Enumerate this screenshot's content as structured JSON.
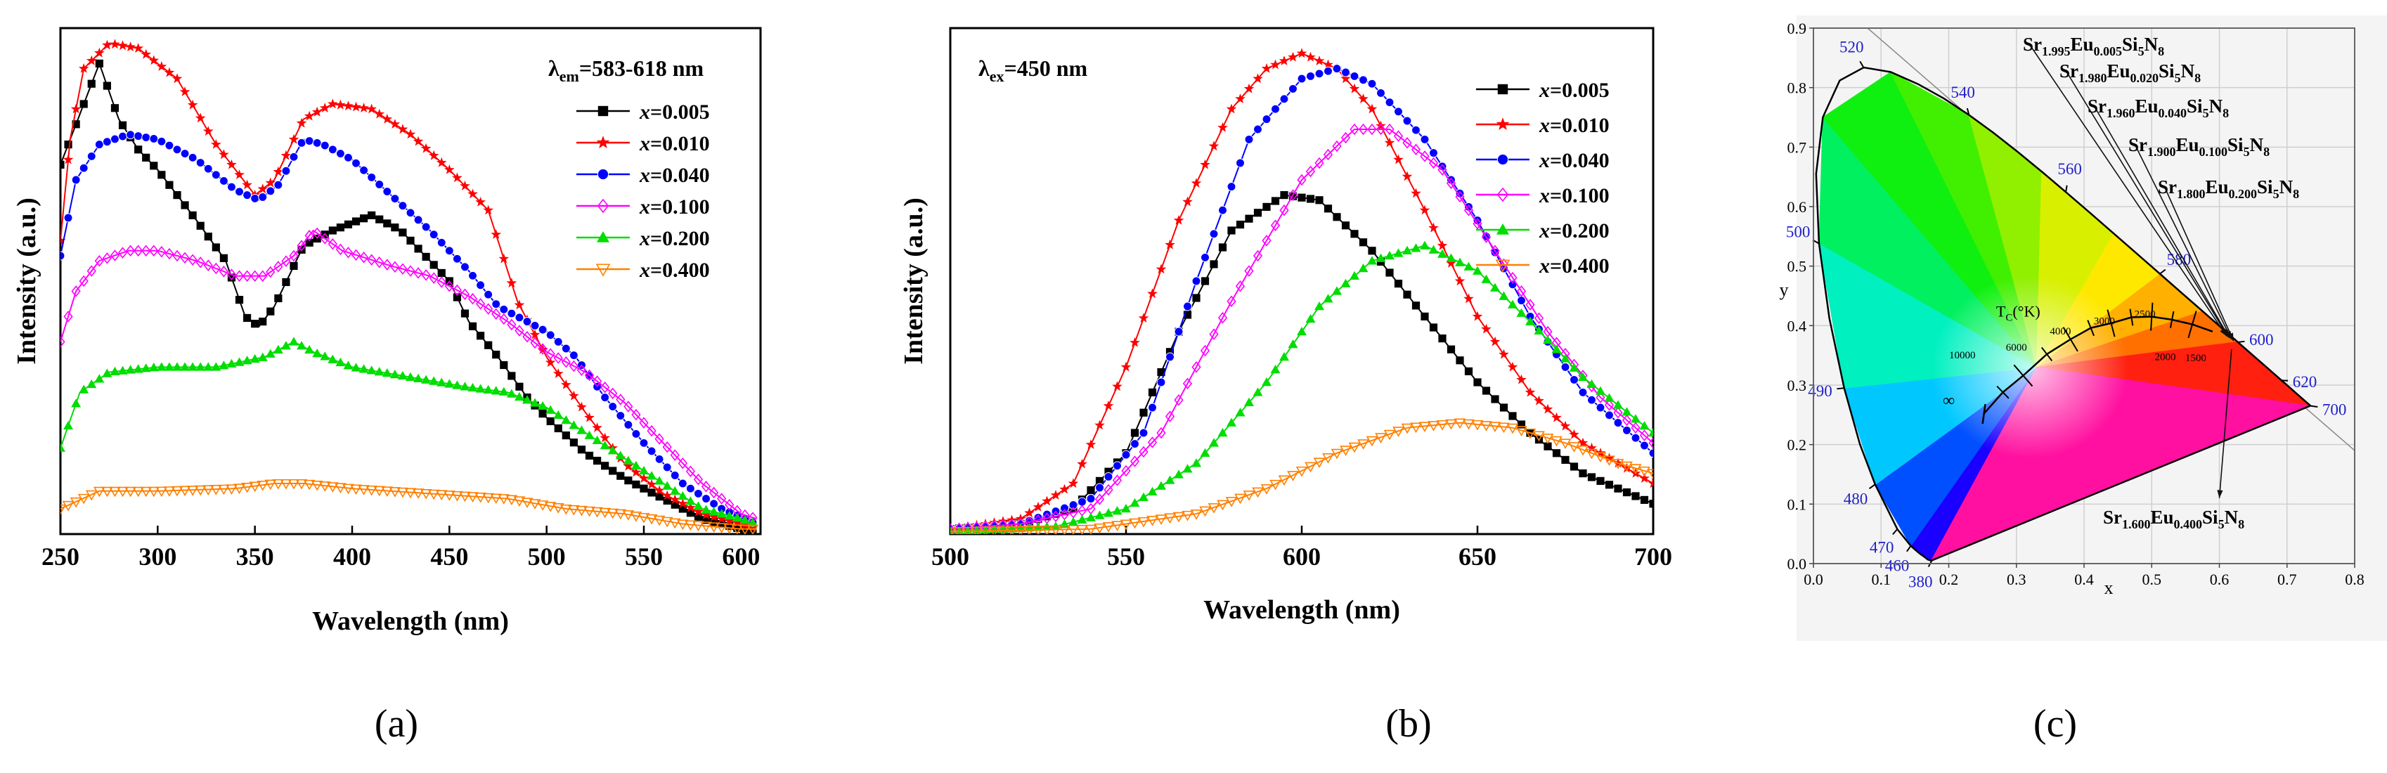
{
  "colors": {
    "s1": "#000000",
    "s2": "#ff0000",
    "s3": "#0000ff",
    "s4": "#ff00ff",
    "s5": "#00dd00",
    "s6": "#ff8000",
    "cie_label": "#2020cc"
  },
  "captions": {
    "a": "(a)",
    "b": "(b)",
    "c": "(c)"
  },
  "chart_data": [
    {
      "type": "line",
      "panel": "a",
      "annotation": {
        "prefix": "λ",
        "sub": "em",
        "text": "=583-618 nm"
      },
      "xlabel": "Wavelength (nm)",
      "ylabel": "Intensity (a.u.)",
      "xlim": [
        250,
        610
      ],
      "ylim": [
        0,
        1
      ],
      "xticks": [
        "250",
        "300",
        "350",
        "400",
        "450",
        "500",
        "550",
        "600"
      ],
      "legend_prefix": "x",
      "series": [
        {
          "name": "=0.005",
          "marker": "square",
          "points": [
            [
              250,
              0.73
            ],
            [
              260,
              0.83
            ],
            [
              270,
              0.93
            ],
            [
              280,
              0.82
            ],
            [
              290,
              0.76
            ],
            [
              300,
              0.72
            ],
            [
              320,
              0.62
            ],
            [
              335,
              0.54
            ],
            [
              345,
              0.43
            ],
            [
              352,
              0.41
            ],
            [
              360,
              0.45
            ],
            [
              375,
              0.57
            ],
            [
              390,
              0.6
            ],
            [
              410,
              0.63
            ],
            [
              425,
              0.6
            ],
            [
              440,
              0.54
            ],
            [
              450,
              0.5
            ],
            [
              460,
              0.42
            ],
            [
              475,
              0.35
            ],
            [
              490,
              0.27
            ],
            [
              500,
              0.23
            ],
            [
              520,
              0.16
            ],
            [
              540,
              0.11
            ],
            [
              560,
              0.07
            ],
            [
              580,
              0.03
            ],
            [
              600,
              0.01
            ],
            [
              608,
              0.01
            ]
          ]
        },
        {
          "name": "=0.010",
          "marker": "star",
          "points": [
            [
              250,
              0.58
            ],
            [
              255,
              0.78
            ],
            [
              262,
              0.92
            ],
            [
              275,
              0.97
            ],
            [
              290,
              0.96
            ],
            [
              310,
              0.9
            ],
            [
              330,
              0.77
            ],
            [
              350,
              0.67
            ],
            [
              360,
              0.7
            ],
            [
              375,
              0.82
            ],
            [
              390,
              0.85
            ],
            [
              410,
              0.84
            ],
            [
              430,
              0.79
            ],
            [
              450,
              0.72
            ],
            [
              470,
              0.64
            ],
            [
              485,
              0.46
            ],
            [
              500,
              0.35
            ],
            [
              520,
              0.24
            ],
            [
              540,
              0.14
            ],
            [
              560,
              0.08
            ],
            [
              580,
              0.04
            ],
            [
              600,
              0.02
            ],
            [
              608,
              0.01
            ]
          ]
        },
        {
          "name": "=0.040",
          "marker": "circle",
          "points": [
            [
              250,
              0.55
            ],
            [
              258,
              0.7
            ],
            [
              270,
              0.77
            ],
            [
              285,
              0.79
            ],
            [
              300,
              0.78
            ],
            [
              320,
              0.74
            ],
            [
              340,
              0.68
            ],
            [
              352,
              0.66
            ],
            [
              362,
              0.69
            ],
            [
              375,
              0.78
            ],
            [
              385,
              0.77
            ],
            [
              400,
              0.74
            ],
            [
              420,
              0.67
            ],
            [
              440,
              0.6
            ],
            [
              460,
              0.52
            ],
            [
              475,
              0.45
            ],
            [
              490,
              0.42
            ],
            [
              500,
              0.4
            ],
            [
              515,
              0.35
            ],
            [
              530,
              0.27
            ],
            [
              550,
              0.18
            ],
            [
              570,
              0.1
            ],
            [
              590,
              0.05
            ],
            [
              608,
              0.02
            ]
          ]
        },
        {
          "name": "=0.100",
          "marker": "diamond",
          "points": [
            [
              250,
              0.38
            ],
            [
              258,
              0.48
            ],
            [
              270,
              0.54
            ],
            [
              285,
              0.56
            ],
            [
              300,
              0.56
            ],
            [
              320,
              0.54
            ],
            [
              340,
              0.51
            ],
            [
              355,
              0.51
            ],
            [
              370,
              0.55
            ],
            [
              380,
              0.6
            ],
            [
              395,
              0.56
            ],
            [
              420,
              0.53
            ],
            [
              440,
              0.51
            ],
            [
              460,
              0.47
            ],
            [
              480,
              0.42
            ],
            [
              500,
              0.36
            ],
            [
              520,
              0.32
            ],
            [
              540,
              0.26
            ],
            [
              560,
              0.18
            ],
            [
              580,
              0.1
            ],
            [
              600,
              0.04
            ],
            [
              608,
              0.03
            ]
          ]
        },
        {
          "name": "=0.200",
          "marker": "triangle",
          "points": [
            [
              250,
              0.17
            ],
            [
              260,
              0.28
            ],
            [
              275,
              0.32
            ],
            [
              300,
              0.33
            ],
            [
              330,
              0.33
            ],
            [
              355,
              0.35
            ],
            [
              370,
              0.38
            ],
            [
              380,
              0.36
            ],
            [
              400,
              0.33
            ],
            [
              430,
              0.31
            ],
            [
              460,
              0.29
            ],
            [
              480,
              0.28
            ],
            [
              500,
              0.25
            ],
            [
              520,
              0.2
            ],
            [
              540,
              0.15
            ],
            [
              560,
              0.1
            ],
            [
              580,
              0.05
            ],
            [
              600,
              0.03
            ],
            [
              608,
              0.02
            ]
          ]
        },
        {
          "name": "=0.400",
          "marker": "tri-down",
          "points": [
            [
              250,
              0.05
            ],
            [
              270,
              0.085
            ],
            [
              300,
              0.085
            ],
            [
              340,
              0.09
            ],
            [
              360,
              0.1
            ],
            [
              375,
              0.1
            ],
            [
              400,
              0.09
            ],
            [
              440,
              0.08
            ],
            [
              480,
              0.07
            ],
            [
              510,
              0.05
            ],
            [
              540,
              0.04
            ],
            [
              570,
              0.02
            ],
            [
              600,
              0.01
            ],
            [
              608,
              0.01
            ]
          ]
        }
      ]
    },
    {
      "type": "line",
      "panel": "b",
      "annotation": {
        "prefix": "λ",
        "sub": "ex",
        "text": "=450 nm"
      },
      "xlabel": "Wavelength (nm)",
      "ylabel": "Intensity (a.u.)",
      "xlim": [
        500,
        700
      ],
      "ylim": [
        0,
        1
      ],
      "xticks": [
        "500",
        "550",
        "600",
        "650",
        "700"
      ],
      "legend_prefix": "x",
      "series": [
        {
          "name": "=0.005",
          "marker": "square",
          "points": [
            [
              500,
              0.01
            ],
            [
              520,
              0.02
            ],
            [
              535,
              0.05
            ],
            [
              550,
              0.16
            ],
            [
              565,
              0.4
            ],
            [
              580,
              0.6
            ],
            [
              595,
              0.67
            ],
            [
              605,
              0.66
            ],
            [
              620,
              0.56
            ],
            [
              635,
              0.43
            ],
            [
              650,
              0.3
            ],
            [
              665,
              0.2
            ],
            [
              680,
              0.12
            ],
            [
              700,
              0.06
            ]
          ]
        },
        {
          "name": "=0.010",
          "marker": "star",
          "points": [
            [
              500,
              0.01
            ],
            [
              520,
              0.03
            ],
            [
              535,
              0.1
            ],
            [
              550,
              0.33
            ],
            [
              565,
              0.62
            ],
            [
              580,
              0.84
            ],
            [
              590,
              0.92
            ],
            [
              600,
              0.95
            ],
            [
              610,
              0.92
            ],
            [
              620,
              0.84
            ],
            [
              635,
              0.64
            ],
            [
              650,
              0.43
            ],
            [
              665,
              0.28
            ],
            [
              680,
              0.18
            ],
            [
              700,
              0.1
            ]
          ]
        },
        {
          "name": "=0.040",
          "marker": "circle",
          "points": [
            [
              500,
              0.01
            ],
            [
              520,
              0.02
            ],
            [
              540,
              0.07
            ],
            [
              555,
              0.2
            ],
            [
              570,
              0.5
            ],
            [
              585,
              0.78
            ],
            [
              600,
              0.9
            ],
            [
              610,
              0.92
            ],
            [
              620,
              0.89
            ],
            [
              635,
              0.78
            ],
            [
              650,
              0.62
            ],
            [
              665,
              0.43
            ],
            [
              680,
              0.28
            ],
            [
              700,
              0.16
            ]
          ]
        },
        {
          "name": "=0.100",
          "marker": "hollow-diamond",
          "points": [
            [
              500,
              0.01
            ],
            [
              520,
              0.02
            ],
            [
              540,
              0.05
            ],
            [
              560,
              0.2
            ],
            [
              580,
              0.46
            ],
            [
              600,
              0.7
            ],
            [
              615,
              0.8
            ],
            [
              625,
              0.8
            ],
            [
              640,
              0.72
            ],
            [
              655,
              0.56
            ],
            [
              670,
              0.4
            ],
            [
              685,
              0.27
            ],
            [
              700,
              0.18
            ]
          ]
        },
        {
          "name": "=0.200",
          "marker": "triangle",
          "points": [
            [
              500,
              0.005
            ],
            [
              530,
              0.015
            ],
            [
              550,
              0.05
            ],
            [
              570,
              0.14
            ],
            [
              590,
              0.3
            ],
            [
              605,
              0.45
            ],
            [
              620,
              0.54
            ],
            [
              635,
              0.57
            ],
            [
              650,
              0.52
            ],
            [
              665,
              0.42
            ],
            [
              680,
              0.31
            ],
            [
              700,
              0.2
            ]
          ]
        },
        {
          "name": "=0.400",
          "marker": "tri-down",
          "points": [
            [
              500,
              0.005
            ],
            [
              540,
              0.01
            ],
            [
              570,
              0.04
            ],
            [
              590,
              0.09
            ],
            [
              610,
              0.16
            ],
            [
              630,
              0.21
            ],
            [
              645,
              0.22
            ],
            [
              660,
              0.21
            ],
            [
              675,
              0.18
            ],
            [
              690,
              0.14
            ],
            [
              700,
              0.12
            ]
          ]
        }
      ]
    },
    {
      "type": "cie_diagram",
      "panel": "c",
      "xlabel": "x",
      "ylabel": "y",
      "xlim": [
        0,
        0.8
      ],
      "ylim": [
        0,
        0.9
      ],
      "xticks": [
        "0.0",
        "0.1",
        "0.2",
        "0.3",
        "0.4",
        "0.5",
        "0.6",
        "0.7",
        "0.8"
      ],
      "yticks": [
        "0.0",
        "0.1",
        "0.2",
        "0.3",
        "0.4",
        "0.5",
        "0.6",
        "0.7",
        "0.8",
        "0.9"
      ],
      "wavelength_labels": [
        {
          "t": "380",
          "x": 0.175,
          "y": 0.005
        },
        {
          "t": "460",
          "x": 0.144,
          "y": 0.03
        },
        {
          "t": "470",
          "x": 0.124,
          "y": 0.058
        },
        {
          "t": "480",
          "x": 0.091,
          "y": 0.133
        },
        {
          "t": "490",
          "x": 0.045,
          "y": 0.295
        },
        {
          "t": "500",
          "x": 0.008,
          "y": 0.538
        },
        {
          "t": "520",
          "x": 0.074,
          "y": 0.834
        },
        {
          "t": "540",
          "x": 0.23,
          "y": 0.754
        },
        {
          "t": "560",
          "x": 0.373,
          "y": 0.624
        },
        {
          "t": "580",
          "x": 0.512,
          "y": 0.487
        },
        {
          "t": "600",
          "x": 0.627,
          "y": 0.372
        },
        {
          "t": "620",
          "x": 0.691,
          "y": 0.308
        },
        {
          "t": "700",
          "x": 0.735,
          "y": 0.265
        }
      ],
      "planckian_title": {
        "pre": "T",
        "sub": "C",
        "post": "(°K)"
      },
      "planckian_labels": [
        "10000",
        "6000",
        "4000",
        "3000",
        "2500",
        "2000",
        "1500",
        "∞"
      ],
      "compositions": [
        {
          "a": "1.995",
          "b": "0.005",
          "cie_x": 0.611,
          "cie_y": 0.382
        },
        {
          "a": "1.980",
          "b": "0.020",
          "cie_x": 0.613,
          "cie_y": 0.381
        },
        {
          "a": "1.960",
          "b": "0.040",
          "cie_x": 0.615,
          "cie_y": 0.379
        },
        {
          "a": "1.900",
          "b": "0.100",
          "cie_x": 0.618,
          "cie_y": 0.377
        },
        {
          "a": "1.800",
          "b": "0.200",
          "cie_x": 0.621,
          "cie_y": 0.374
        },
        {
          "a": "1.600",
          "b": "0.400",
          "cie_x": 0.6,
          "cie_y": 0.11
        }
      ],
      "formula_parts": {
        "sr": "Sr",
        "eu": "Eu",
        "si": "Si",
        "si_n": "5",
        "n": "N",
        "n_n": "8"
      }
    }
  ]
}
